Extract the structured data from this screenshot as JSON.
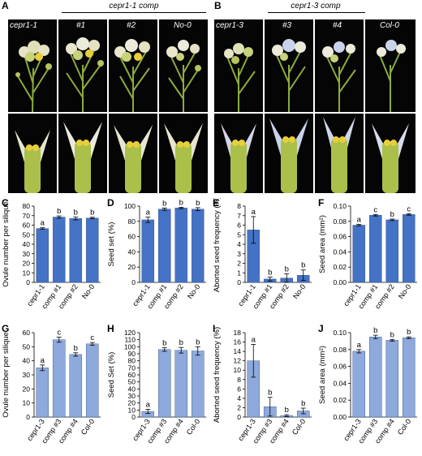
{
  "figure": {
    "panel_letters": [
      "A",
      "B",
      "C",
      "D",
      "E",
      "F",
      "G",
      "H",
      "I",
      "J"
    ],
    "panel_a": {
      "group_title": "cepr1-1 comp",
      "labels": [
        "cepr1-1",
        "#1",
        "#2",
        "No-0"
      ]
    },
    "panel_b": {
      "group_title": "cepr1-3 comp",
      "labels": [
        "cepr1-3",
        "#3",
        "#4",
        "Col-0"
      ]
    }
  },
  "colors": {
    "row1_bar": "#4472c4",
    "row2_bar": "#8ea9db",
    "photo_bg": "#050505",
    "stem_green": "#8cab3e",
    "petal_white": "#eceadb",
    "petal_blue": "#c9d3ec",
    "anther_yellow": "#e8cf3a"
  },
  "chart_data": [
    {
      "letter": "C",
      "type": "bar",
      "categories": [
        "cepr1-1",
        "comp #1",
        "comp #2",
        "No-0"
      ],
      "values": [
        56.5,
        68.5,
        67,
        67.5
      ],
      "errors": [
        0.8,
        1.2,
        1.5,
        0.8
      ],
      "sig": [
        "a",
        "b",
        "b",
        "b"
      ],
      "ylabel": "Ovule number per silique",
      "ylim": [
        0,
        80
      ],
      "ticks": [
        0,
        10,
        20,
        30,
        40,
        50,
        60,
        70,
        80
      ],
      "tick_labels": [
        "0",
        "10",
        "20",
        "30",
        "40",
        "50",
        "60",
        "70",
        "80"
      ],
      "color": "#4472c4"
    },
    {
      "letter": "D",
      "type": "bar",
      "categories": [
        "cepr1-1",
        "comp #1",
        "comp #2",
        "No-0"
      ],
      "values": [
        82,
        96,
        97.5,
        96
      ],
      "errors": [
        3.5,
        1.5,
        1,
        2
      ],
      "sig": [
        "a",
        "b",
        "b",
        "b"
      ],
      "ylabel": "Seed set (%)",
      "ylim": [
        0,
        100
      ],
      "ticks": [
        0,
        20,
        40,
        60,
        80,
        100
      ],
      "tick_labels": [
        "0",
        "20",
        "40",
        "60",
        "80",
        "100"
      ],
      "color": "#4472c4"
    },
    {
      "letter": "E",
      "type": "bar",
      "categories": [
        "cepr1-1",
        "comp #1",
        "comp #2",
        "No-0"
      ],
      "values": [
        5.5,
        0.35,
        0.45,
        0.75
      ],
      "errors": [
        1.4,
        0.2,
        0.45,
        0.55
      ],
      "sig": [
        "a",
        "b",
        "b",
        "b"
      ],
      "ylabel": "Aborted seed frequency (%)",
      "ylim": [
        0,
        8
      ],
      "ticks": [
        0,
        1,
        2,
        3,
        4,
        5,
        6,
        7,
        8
      ],
      "tick_labels": [
        "0",
        "1",
        "2",
        "3",
        "4",
        "5",
        "6",
        "7",
        "8"
      ],
      "color": "#4472c4"
    },
    {
      "letter": "F",
      "type": "bar",
      "categories": [
        "cepr1-1",
        "comp #1",
        "comp #2",
        "No-0"
      ],
      "values": [
        0.075,
        0.088,
        0.082,
        0.089
      ],
      "errors": [
        0.001,
        0.001,
        0.001,
        0.001
      ],
      "sig": [
        "a",
        "c",
        "b",
        "c"
      ],
      "ylabel": "Seed area (mm²)",
      "ylim": [
        0,
        0.1
      ],
      "ticks": [
        0,
        0.02,
        0.04,
        0.06,
        0.08,
        0.1
      ],
      "tick_labels": [
        "0.00",
        "0.02",
        "0.04",
        "0.06",
        "0.08",
        "0.10"
      ],
      "color": "#4472c4"
    },
    {
      "letter": "G",
      "type": "bar",
      "categories": [
        "cepr1-3",
        "comp #3",
        "comp #4",
        "Col-0"
      ],
      "values": [
        35,
        55,
        44.5,
        52
      ],
      "errors": [
        2,
        1.8,
        1.2,
        1
      ],
      "sig": [
        "a",
        "c",
        "b",
        "c"
      ],
      "ylabel": "Ovule number per silique",
      "ylim": [
        0,
        60
      ],
      "ticks": [
        0,
        10,
        20,
        30,
        40,
        50,
        60
      ],
      "tick_labels": [
        "0",
        "10",
        "20",
        "30",
        "40",
        "50",
        "60"
      ],
      "color": "#8ea9db"
    },
    {
      "letter": "H",
      "type": "bar",
      "categories": [
        "cepr1-3",
        "comp #3",
        "comp #4",
        "Col-0"
      ],
      "values": [
        8,
        96,
        95,
        94
      ],
      "errors": [
        3,
        2.5,
        4,
        6
      ],
      "sig": [
        "a",
        "b",
        "b",
        "b"
      ],
      "ylabel": "Seed Set (%)",
      "ylim": [
        0,
        120
      ],
      "ticks": [
        0,
        10,
        20,
        30,
        40,
        50,
        60,
        70,
        80,
        90,
        100,
        110,
        120
      ],
      "tick_labels": [
        "0",
        "10",
        "20",
        "30",
        "40",
        "50",
        "60",
        "70",
        "80",
        "90",
        "100",
        "110",
        "120"
      ],
      "color": "#8ea9db"
    },
    {
      "letter": "I",
      "type": "bar",
      "categories": [
        "cepr1-3",
        "comp #3",
        "comp #4",
        "Col-0"
      ],
      "values": [
        12,
        2.2,
        0.3,
        1.3
      ],
      "errors": [
        3.5,
        2,
        0.2,
        0.6
      ],
      "sig": [
        "a",
        "b",
        "b",
        "b"
      ],
      "ylabel": "Aborted seed frequency (%)",
      "ylim": [
        0,
        18
      ],
      "ticks": [
        0,
        2,
        4,
        6,
        8,
        10,
        12,
        14,
        16,
        18
      ],
      "tick_labels": [
        "0",
        "2",
        "4",
        "6",
        "8",
        "10",
        "12",
        "14",
        "16",
        "18"
      ],
      "color": "#8ea9db"
    },
    {
      "letter": "J",
      "type": "bar",
      "categories": [
        "cepr1-3",
        "comp #3",
        "comp #4",
        "Col-0"
      ],
      "values": [
        0.078,
        0.095,
        0.091,
        0.094
      ],
      "errors": [
        0.002,
        0.002,
        0.001,
        0.001
      ],
      "sig": [
        "a",
        "b",
        "b",
        "b"
      ],
      "ylabel": "Seed area (mm²)",
      "ylim": [
        0,
        0.1
      ],
      "ticks": [
        0,
        0.02,
        0.04,
        0.06,
        0.08,
        0.1
      ],
      "tick_labels": [
        "0.00",
        "0.02",
        "0.04",
        "0.06",
        "0.08",
        "0.10"
      ],
      "color": "#8ea9db"
    }
  ]
}
